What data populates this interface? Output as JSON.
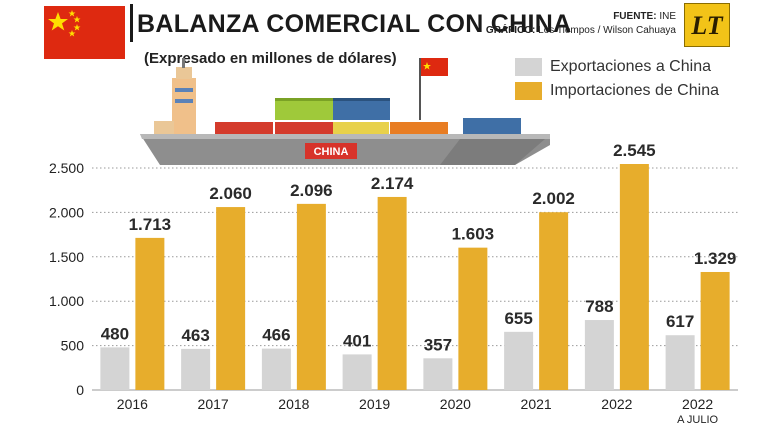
{
  "header": {
    "title": "BALANZA COMERCIAL CON CHINA",
    "subtitle": "(Expresado en millones de dólares)",
    "source_label": "FUENTE:",
    "source_value": "INE",
    "graphic_label": "GRÁFICO:",
    "graphic_value": "Los Tiempos / Wilson Cahuaya",
    "logo_text": "LT",
    "ship_label": "CHINA"
  },
  "colors": {
    "exports": "#d4d4d4",
    "imports": "#e7ad2c",
    "flag_red": "#de2910",
    "flag_star": "#ffde00"
  },
  "chart_data": {
    "type": "bar",
    "categories": [
      "2016",
      "2017",
      "2018",
      "2019",
      "2020",
      "2021",
      "2022",
      "2022"
    ],
    "category_sublabels": [
      "",
      "",
      "",
      "",
      "",
      "",
      "",
      "A JULIO"
    ],
    "series": [
      {
        "name": "Exportaciones a China",
        "values": [
          480,
          463,
          466,
          401,
          357,
          655,
          788,
          617
        ],
        "labels": [
          "480",
          "463",
          "466",
          "401",
          "357",
          "655",
          "788",
          "617"
        ]
      },
      {
        "name": "Importaciones de China",
        "values": [
          1713,
          2060,
          2096,
          2174,
          1603,
          2002,
          2545,
          1329
        ],
        "labels": [
          "1.713",
          "2.060",
          "2.096",
          "2.174",
          "1.603",
          "2.002",
          "2.545",
          "1.329"
        ]
      }
    ],
    "yticks": [
      0,
      500,
      1000,
      1500,
      2000,
      2500
    ],
    "ytick_labels": [
      "0",
      "500",
      "1.000",
      "1.500",
      "2.000",
      "2.500"
    ],
    "ylim": [
      0,
      2600
    ],
    "grid": "horizontal dotted",
    "legend_position": "top-right"
  }
}
